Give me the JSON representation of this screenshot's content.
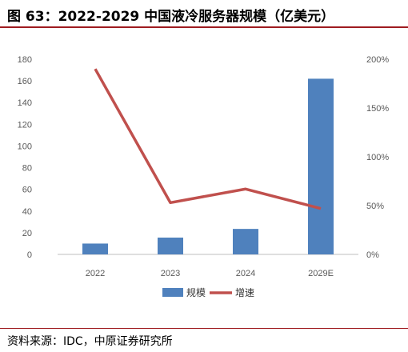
{
  "title": "图 63：2022-2029 中国液冷服务器规模（亿美元）",
  "source": "资料来源：IDC，中原证券研究所",
  "chart_data": {
    "type": "bar",
    "categories": [
      "2022",
      "2023",
      "2024",
      "2029E"
    ],
    "series": [
      {
        "name": "规模",
        "type": "bar",
        "axis": "left",
        "color": "#4f81bd",
        "values": [
          10,
          15.5,
          23.5,
          162
        ]
      },
      {
        "name": "增速",
        "type": "line",
        "axis": "right",
        "color": "#c0504d",
        "values": [
          1.9,
          0.53,
          0.67,
          0.47
        ]
      }
    ],
    "y_left": {
      "min": 0,
      "max": 180,
      "step": 20,
      "ticks": [
        "0",
        "20",
        "40",
        "60",
        "80",
        "100",
        "120",
        "140",
        "160",
        "180"
      ]
    },
    "y_right": {
      "min": 0,
      "max": 2.0,
      "step": 0.5,
      "ticks": [
        "0%",
        "50%",
        "100%",
        "150%",
        "200%"
      ]
    },
    "legend_position": "bottom",
    "grid": false
  }
}
